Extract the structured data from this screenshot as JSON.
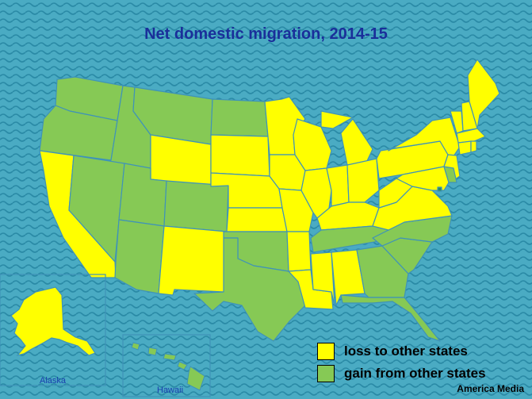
{
  "title": "Net domestic migration, 2014-15",
  "legend": [
    {
      "label": "loss to other states",
      "color": "#ffff00"
    },
    {
      "label": "gain from other states",
      "color": "#86c955"
    }
  ],
  "insets": {
    "alaska": "Alaska",
    "hawaii": "Hawaii"
  },
  "credit": "America Media",
  "colors": {
    "loss": "#ffff00",
    "gain": "#86c955",
    "dc": "#2e8b57",
    "background": "#4aabc3",
    "wave": "#2a8aa6",
    "border": "#3f93b8"
  },
  "states": {
    "WA": "gain",
    "OR": "gain",
    "CA": "loss",
    "ID": "gain",
    "NV": "gain",
    "MT": "gain",
    "WY": "loss",
    "UT": "gain",
    "AZ": "gain",
    "CO": "gain",
    "NM": "loss",
    "ND": "gain",
    "SD": "loss",
    "NE": "loss",
    "KS": "loss",
    "OK": "gain",
    "TX": "gain",
    "MN": "loss",
    "IA": "loss",
    "MO": "loss",
    "AR": "loss",
    "LA": "loss",
    "WI": "loss",
    "IL": "loss",
    "MS": "loss",
    "MI": "loss",
    "IN": "loss",
    "OH": "loss",
    "KY": "loss",
    "TN": "gain",
    "AL": "loss",
    "GA": "gain",
    "FL": "gain",
    "SC": "gain",
    "NC": "gain",
    "VA": "loss",
    "WV": "loss",
    "PA": "loss",
    "NY": "loss",
    "VT": "loss",
    "NH": "loss",
    "ME": "loss",
    "MA": "loss",
    "CT": "loss",
    "RI": "loss",
    "NJ": "loss",
    "DE": "gain",
    "MD": "loss",
    "DC": "gain",
    "AK": "loss",
    "HI": "gain"
  }
}
